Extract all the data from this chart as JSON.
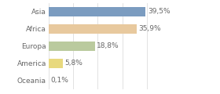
{
  "categories": [
    "Asia",
    "Africa",
    "Europa",
    "America",
    "Oceania"
  ],
  "values": [
    39.5,
    35.9,
    18.8,
    5.8,
    0.1
  ],
  "labels": [
    "39,5%",
    "35,9%",
    "18,8%",
    "5,8%",
    "0,1%"
  ],
  "bar_colors": [
    "#7b9cc0",
    "#e8c99e",
    "#baca9e",
    "#e8d97e",
    "#cccccc"
  ],
  "background_color": "#ffffff",
  "xlim": [
    0,
    50
  ],
  "bar_height": 0.55,
  "label_fontsize": 6.5,
  "tick_fontsize": 6.5,
  "grid_ticks": [
    0,
    10,
    20,
    30,
    40
  ],
  "grid_color": "#dddddd",
  "text_color": "#666666"
}
